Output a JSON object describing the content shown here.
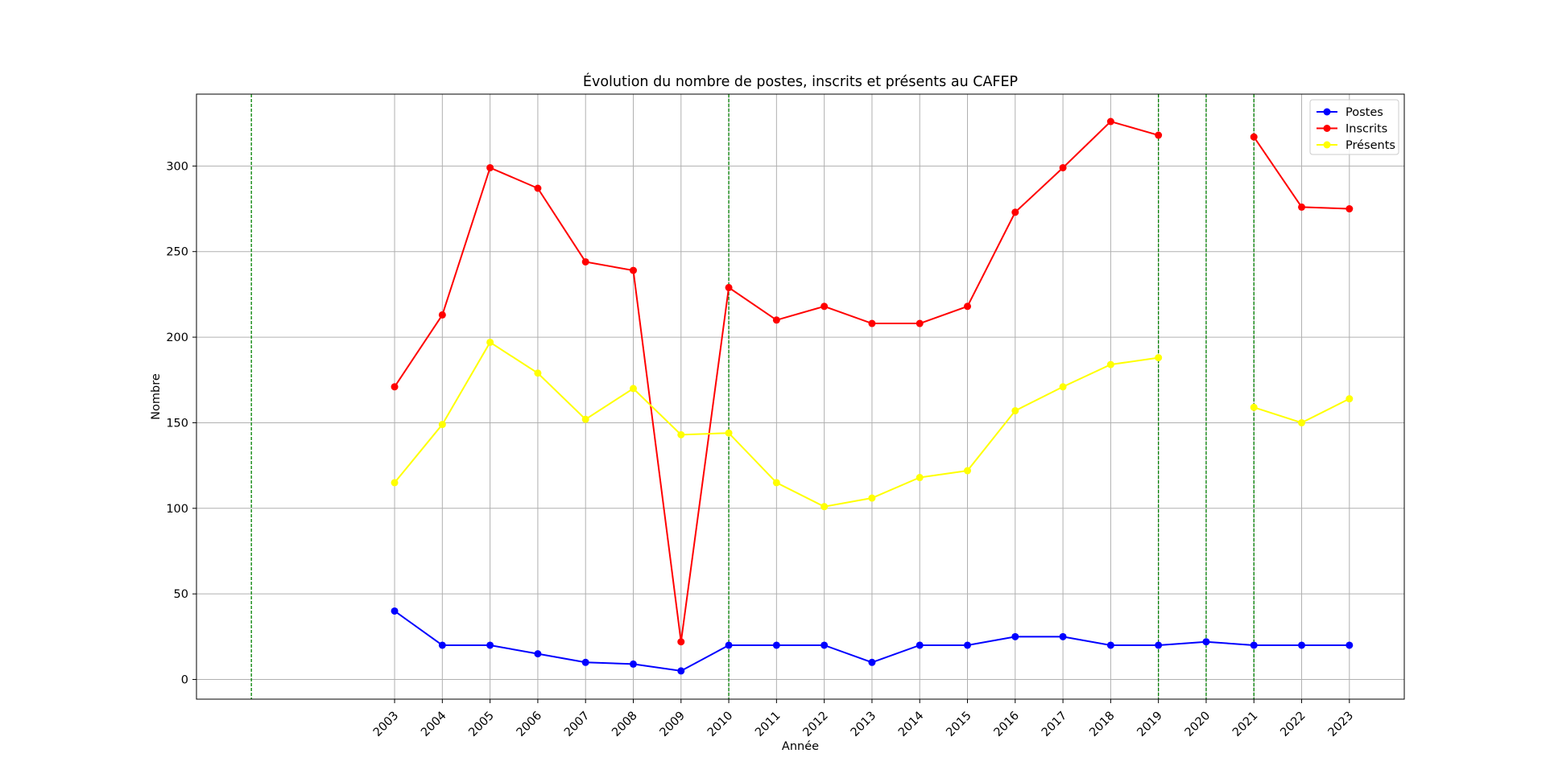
{
  "chart_data": {
    "type": "line",
    "title": "Évolution du nombre de postes, inscrits et présents au CAFEP",
    "xlabel": "Année",
    "ylabel": "Nombre",
    "x": [
      2003,
      2004,
      2005,
      2006,
      2007,
      2008,
      2009,
      2010,
      2011,
      2012,
      2013,
      2014,
      2015,
      2016,
      2017,
      2018,
      2019,
      2020,
      2021,
      2022,
      2023
    ],
    "x_tick_labels": [
      "2003",
      "2004",
      "2005",
      "2006",
      "2007",
      "2008",
      "2009",
      "2010",
      "2011",
      "2012",
      "2013",
      "2014",
      "2015",
      "2016",
      "2017",
      "2018",
      "2019",
      "2020",
      "2021",
      "2022",
      "2023"
    ],
    "xlim": [
      1998.85,
      2024.15
    ],
    "ylim": [
      -11.5,
      342
    ],
    "y_ticks": [
      0,
      50,
      100,
      150,
      200,
      250,
      300
    ],
    "y_tick_labels": [
      "0",
      "50",
      "100",
      "150",
      "200",
      "250",
      "300"
    ],
    "grid": true,
    "legend_position": "top-right",
    "vertical_markers": {
      "color": "#008000",
      "style": "dashed",
      "x": [
        2000,
        2010,
        2019,
        2020,
        2021
      ]
    },
    "series": [
      {
        "name": "Postes",
        "color": "#0000ff",
        "values": [
          40,
          20,
          20,
          15,
          10,
          9,
          5,
          20,
          20,
          20,
          10,
          20,
          20,
          25,
          25,
          20,
          20,
          22,
          20,
          20,
          20
        ]
      },
      {
        "name": "Inscrits",
        "color": "#ff0000",
        "values": [
          171,
          213,
          299,
          287,
          244,
          239,
          22,
          229,
          210,
          218,
          208,
          208,
          218,
          273,
          299,
          326,
          318,
          null,
          317,
          276,
          275
        ]
      },
      {
        "name": "Présents",
        "color": "#ffff00",
        "values": [
          115,
          149,
          197,
          179,
          152,
          170,
          143,
          144,
          115,
          101,
          106,
          118,
          122,
          157,
          171,
          184,
          188,
          null,
          159,
          150,
          164
        ]
      }
    ]
  }
}
